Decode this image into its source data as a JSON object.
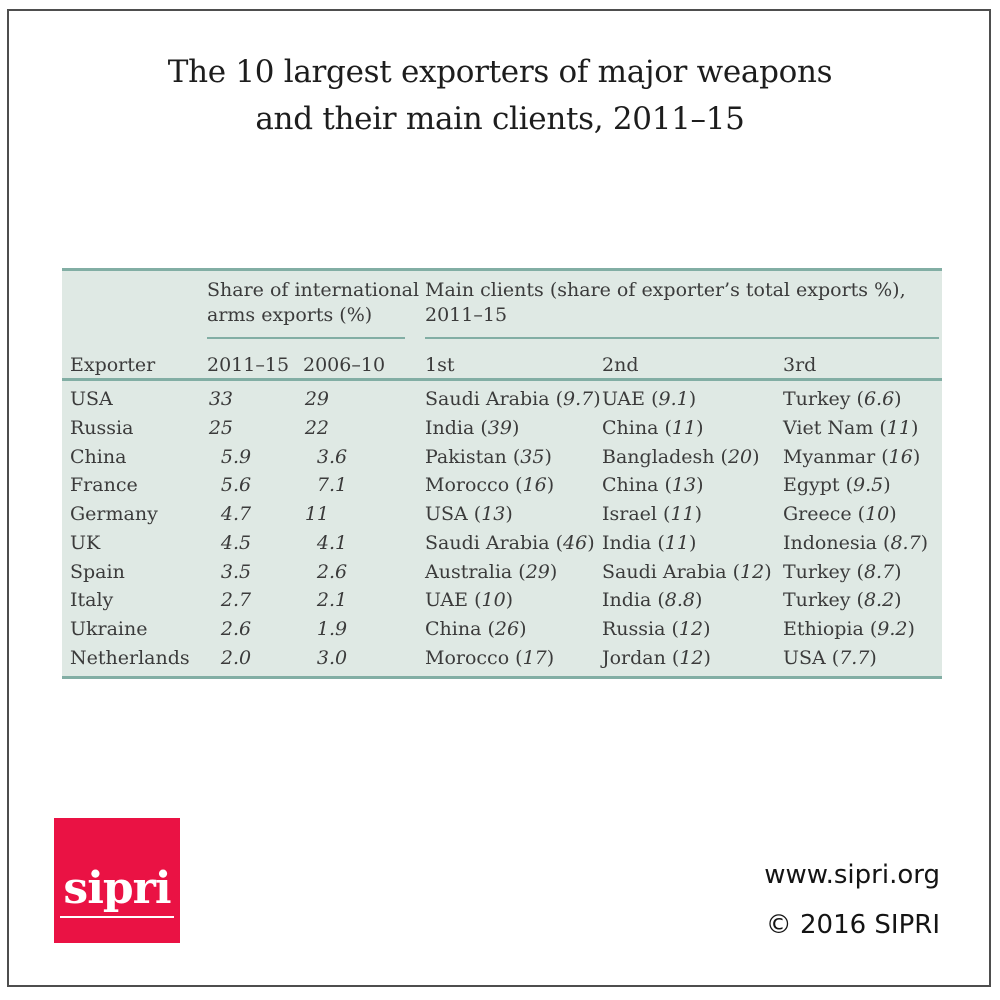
{
  "header": {
    "title_line1": "The 10 largest exporters of major weapons",
    "title_line2": "and their main clients, 2011–15"
  },
  "chart_data": {
    "type": "table",
    "title": "The 10 largest exporters of major weapons and their main clients, 2011–15",
    "row_header": "Exporter",
    "column_groups": [
      {
        "label": "Share of international arms exports (%)",
        "columns": [
          "2011–15",
          "2006–10"
        ]
      },
      {
        "label": "Main clients (share of exporter’s total exports %), 2011–15",
        "columns": [
          "1st",
          "2nd",
          "3rd"
        ]
      }
    ],
    "rows": [
      {
        "exporter": "USA",
        "share_2011_15": "33",
        "share_2006_10": "29",
        "clients": [
          {
            "name": "Saudi Arabia",
            "share": "9.7"
          },
          {
            "name": "UAE",
            "share": "9.1"
          },
          {
            "name": "Turkey",
            "share": "6.6"
          }
        ]
      },
      {
        "exporter": "Russia",
        "share_2011_15": "25",
        "share_2006_10": "22",
        "clients": [
          {
            "name": "India",
            "share": "39"
          },
          {
            "name": "China",
            "share": "11"
          },
          {
            "name": "Viet Nam",
            "share": "11"
          }
        ]
      },
      {
        "exporter": "China",
        "share_2011_15": "5.9",
        "share_2006_10": "3.6",
        "clients": [
          {
            "name": "Pakistan",
            "share": "35"
          },
          {
            "name": "Bangladesh",
            "share": "20"
          },
          {
            "name": "Myanmar",
            "share": "16"
          }
        ]
      },
      {
        "exporter": "France",
        "share_2011_15": "5.6",
        "share_2006_10": "7.1",
        "clients": [
          {
            "name": "Morocco",
            "share": "16"
          },
          {
            "name": "China",
            "share": "13"
          },
          {
            "name": "Egypt",
            "share": "9.5"
          }
        ]
      },
      {
        "exporter": "Germany",
        "share_2011_15": "4.7",
        "share_2006_10": "11",
        "clients": [
          {
            "name": "USA",
            "share": "13"
          },
          {
            "name": "Israel",
            "share": "11"
          },
          {
            "name": "Greece",
            "share": "10"
          }
        ]
      },
      {
        "exporter": "UK",
        "share_2011_15": "4.5",
        "share_2006_10": "4.1",
        "clients": [
          {
            "name": "Saudi Arabia",
            "share": "46"
          },
          {
            "name": "India",
            "share": "11"
          },
          {
            "name": "Indonesia",
            "share": "8.7"
          }
        ]
      },
      {
        "exporter": "Spain",
        "share_2011_15": "3.5",
        "share_2006_10": "2.6",
        "clients": [
          {
            "name": "Australia",
            "share": "29"
          },
          {
            "name": "Saudi Arabia",
            "share": "12"
          },
          {
            "name": "Turkey",
            "share": "8.7"
          }
        ]
      },
      {
        "exporter": "Italy",
        "share_2011_15": "2.7",
        "share_2006_10": "2.1",
        "clients": [
          {
            "name": "UAE",
            "share": "10"
          },
          {
            "name": "India",
            "share": "8.8"
          },
          {
            "name": "Turkey",
            "share": "8.2"
          }
        ]
      },
      {
        "exporter": "Ukraine",
        "share_2011_15": "2.6",
        "share_2006_10": "1.9",
        "clients": [
          {
            "name": "China",
            "share": "26"
          },
          {
            "name": "Russia",
            "share": "12"
          },
          {
            "name": "Ethiopia",
            "share": "9.2"
          }
        ]
      },
      {
        "exporter": "Netherlands",
        "share_2011_15": "2.0",
        "share_2006_10": "3.0",
        "clients": [
          {
            "name": "Morocco",
            "share": "17"
          },
          {
            "name": "Jordan",
            "share": "12"
          },
          {
            "name": "USA",
            "share": "7.7"
          }
        ]
      }
    ]
  },
  "footer": {
    "logo_text": "sipri",
    "website": "www.sipri.org",
    "copyright": "© 2016 SIPRI"
  },
  "colors": {
    "table_background": "#dfe9e4",
    "rule_teal": "#82aea4",
    "logo_red": "#ea1244",
    "text_dark": "#3b3b3b"
  }
}
